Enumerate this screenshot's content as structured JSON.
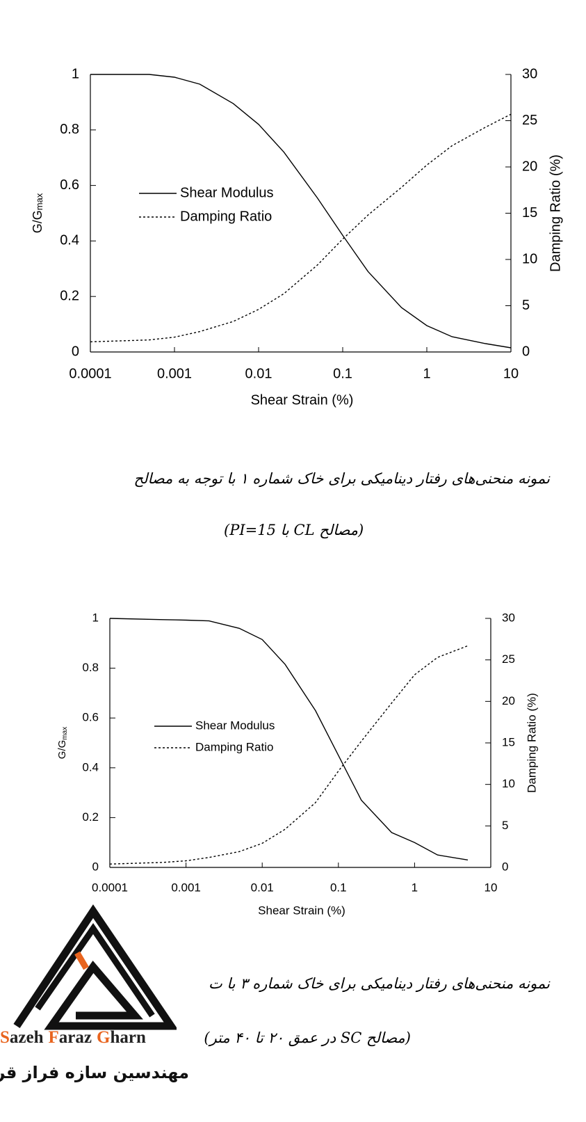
{
  "chart_data": [
    {
      "type": "line",
      "xlabel": "Shear Strain (%)",
      "ylabel": "G/G",
      "ylabel_subscript": "max",
      "y2label": "Damping Ratio (%)",
      "xscale": "log",
      "xlim": [
        0.0001,
        10
      ],
      "xticks": [
        0.0001,
        0.001,
        0.01,
        0.1,
        1,
        10
      ],
      "ylim": [
        0,
        1
      ],
      "yticks": [
        0,
        0.2,
        0.4,
        0.6,
        0.8,
        1
      ],
      "y2lim": [
        0,
        30
      ],
      "y2ticks": [
        0,
        5,
        10,
        15,
        20,
        25,
        30
      ],
      "x": [
        0.0001,
        0.0005,
        0.001,
        0.002,
        0.005,
        0.01,
        0.02,
        0.05,
        0.1,
        0.2,
        0.5,
        1,
        2,
        5,
        10
      ],
      "series": [
        {
          "name": "Shear Modulus",
          "color": "#000000",
          "style": "solid",
          "values": [
            1,
            1,
            0.99,
            0.965,
            0.895,
            0.82,
            0.72,
            0.555,
            0.42,
            0.29,
            0.16,
            0.095,
            0.055,
            0.03,
            0.015
          ]
        },
        {
          "name": "Damping Ratio",
          "color": "#000000",
          "style": "dotted",
          "axis": "y2",
          "values": [
            1.1,
            1.3,
            1.6,
            2.2,
            3.3,
            4.6,
            6.3,
            9.4,
            12.2,
            14.8,
            17.8,
            20.2,
            22.3,
            24.3,
            25.7
          ]
        }
      ]
    },
    {
      "type": "line",
      "xlabel": "Shear Strain (%)",
      "ylabel": "G/G",
      "ylabel_subscript": "max",
      "y2label": "Damping Ratio (%)",
      "xscale": "log",
      "xlim": [
        0.0001,
        10
      ],
      "xticks": [
        0.0001,
        0.001,
        0.01,
        0.1,
        1,
        10
      ],
      "ylim": [
        0,
        1
      ],
      "yticks": [
        0,
        0.2,
        0.4,
        0.6,
        0.8,
        1
      ],
      "y2lim": [
        0,
        30
      ],
      "y2ticks": [
        0,
        5,
        10,
        15,
        20,
        25,
        30
      ],
      "x": [
        0.0001,
        0.0005,
        0.001,
        0.002,
        0.005,
        0.01,
        0.02,
        0.05,
        0.1,
        0.2,
        0.5,
        1,
        2,
        5
      ],
      "series": [
        {
          "name": "Shear Modulus",
          "color": "#000000",
          "style": "solid",
          "values": [
            1,
            0.995,
            0.993,
            0.99,
            0.96,
            0.915,
            0.815,
            0.63,
            0.45,
            0.27,
            0.14,
            0.1,
            0.05,
            0.03
          ]
        },
        {
          "name": "Damping Ratio",
          "color": "#000000",
          "style": "dotted",
          "axis": "y2",
          "values": [
            0.4,
            0.6,
            0.8,
            1.2,
            1.9,
            2.9,
            4.6,
            7.8,
            11.6,
            15.2,
            19.8,
            23.2,
            25.3,
            26.7
          ]
        }
      ]
    }
  ],
  "captions": [
    "نمونه منحنی‌های رفتار دینامیکی برای خاک شماره ۱ با توجه به مصالح",
    "(مصالح CL با PI=15)",
    "نمونه منحنی‌های رفتار دینامیکی برای خاک شماره ۳ با ت",
    "(مصالح SC در عمق ۲۰ تا ۴۰ متر)"
  ],
  "logo": {
    "name_words": [
      "Sazeh",
      "Faraz",
      "Gharn"
    ],
    "subtitle": "مهندسین سازه فراز قرن"
  }
}
